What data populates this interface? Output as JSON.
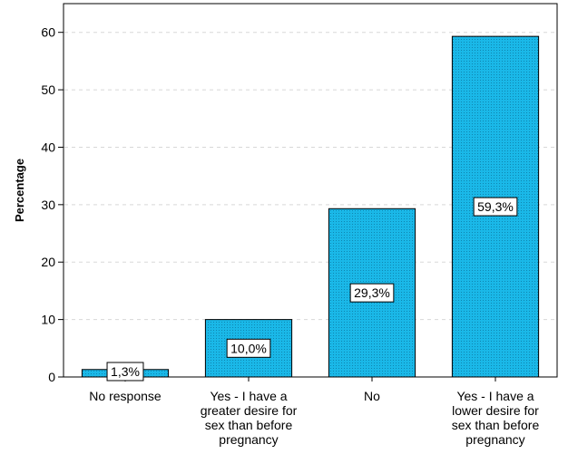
{
  "chart_data": {
    "type": "bar",
    "ylabel": "Percentage",
    "xlabel": "",
    "ylim": [
      0,
      65
    ],
    "yticks": [
      0,
      10,
      20,
      30,
      40,
      50,
      60
    ],
    "grid": true,
    "bar_color": "#1ab8e8",
    "categories": [
      [
        "No response"
      ],
      [
        "Yes - I have a",
        "greater desire for",
        "sex than before",
        "pregnancy"
      ],
      [
        "No"
      ],
      [
        "Yes - I have a",
        "lower desire for",
        "sex than before",
        "pregnancy"
      ]
    ],
    "values": [
      1.3,
      10.0,
      29.3,
      59.3
    ],
    "data_labels": [
      "1,3%",
      "10,0%",
      "29,3%",
      "59,3%"
    ]
  }
}
